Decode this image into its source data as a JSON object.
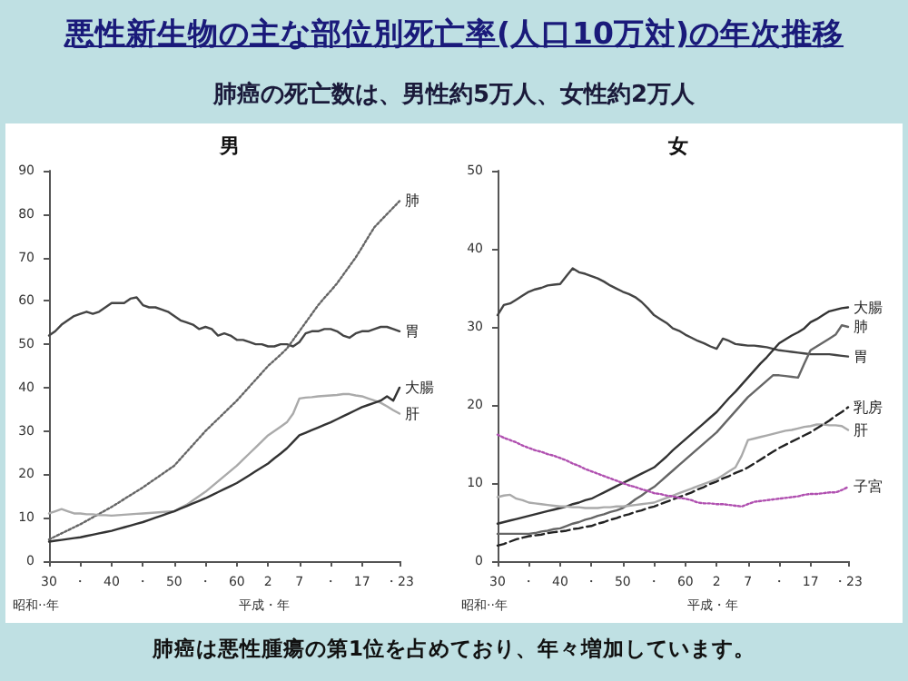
{
  "chart_data": [
    {
      "type": "line",
      "title": "男",
      "xlabel": "昭和··年",
      "annotations": [
        "平成・年",
        "悪性新生物の主な部位別死亡率(人口10万対)の年次推移",
        "肺癌の死亡数は、男性約5万人、女性約2万人"
      ],
      "categories": [
        "30",
        null,
        null,
        null,
        null,
        "・",
        null,
        null,
        null,
        null,
        "40",
        null,
        null,
        null,
        null,
        "・",
        null,
        null,
        null,
        null,
        "50",
        null,
        null,
        null,
        null,
        "・",
        null,
        null,
        null,
        null,
        "60",
        null,
        null,
        null,
        null,
        "2",
        null,
        null,
        null,
        null,
        "7",
        null,
        null,
        null,
        null,
        "・",
        null,
        null,
        null,
        null,
        "17",
        null,
        null,
        null,
        null,
        null,
        "・23"
      ],
      "ylim": [
        0,
        90
      ],
      "yticks": [
        0,
        10,
        20,
        30,
        40,
        50,
        60,
        70,
        80,
        90
      ],
      "grid": false,
      "legend": false,
      "marker": "none",
      "series": [
        {
          "name": "胃",
          "color": "#444444",
          "line_style": "solid",
          "values": [
            52,
            53,
            54.5,
            55.5,
            56.5,
            57,
            57.5,
            57,
            57.5,
            58.5,
            59.5,
            59.5,
            59.5,
            60.5,
            60.8,
            59,
            58.5,
            58.5,
            58,
            57.5,
            56.5,
            55.5,
            55,
            54.5,
            53.5,
            54,
            53.5,
            52,
            52.5,
            52,
            51,
            51,
            50.5,
            50,
            50,
            49.5,
            49.5,
            50,
            50,
            49.5,
            50.5,
            52.5,
            53,
            53,
            53.5,
            53.5,
            53,
            52,
            51.5,
            52.5,
            53,
            53,
            53.5,
            54,
            54,
            53.5,
            53
          ]
        },
        {
          "name": "肺",
          "color": "#666666",
          "line_style": "dotted",
          "values": [
            5,
            5.7,
            6.4,
            7.1,
            7.8,
            8.5,
            9.3,
            10.1,
            10.9,
            11.7,
            12.5,
            13.4,
            14.3,
            15.2,
            16.1,
            17,
            18,
            19,
            20,
            21,
            22,
            23.6,
            25.2,
            26.8,
            28.4,
            30,
            31.4,
            32.8,
            34.2,
            35.6,
            37,
            38.6,
            40.2,
            41.8,
            43.4,
            45,
            46.3,
            47.6,
            49,
            51,
            53,
            55,
            57,
            59,
            60.7,
            62.3,
            64,
            66,
            68,
            70,
            72.3,
            74.7,
            77,
            78.5,
            80,
            81.5,
            83
          ]
        },
        {
          "name": "肝",
          "color": "#aaaaaa",
          "line_style": "solid",
          "values": [
            11,
            11.5,
            12,
            11.5,
            11,
            11,
            10.8,
            10.8,
            10.6,
            10.6,
            10.5,
            10.6,
            10.7,
            10.8,
            10.9,
            11,
            11.1,
            11.2,
            11.3,
            11.4,
            11.5,
            12.3,
            13,
            14,
            15,
            16,
            17.2,
            18.4,
            19.6,
            20.8,
            22,
            23.4,
            24.8,
            26.2,
            27.6,
            29,
            30,
            31,
            32,
            34,
            37.5,
            37.7,
            37.8,
            38,
            38.1,
            38.2,
            38.3,
            38.5,
            38.5,
            38.2,
            38,
            37.5,
            37,
            36.5,
            35.7,
            34.8,
            34
          ]
        },
        {
          "name": "大腸",
          "color": "#333333",
          "line_style": "solid",
          "values": [
            4.5,
            4.7,
            4.9,
            5.1,
            5.3,
            5.5,
            5.8,
            6.1,
            6.4,
            6.7,
            7,
            7.4,
            7.8,
            8.2,
            8.6,
            9,
            9.5,
            10,
            10.5,
            11,
            11.5,
            12.1,
            12.7,
            13.3,
            13.9,
            14.5,
            15.2,
            15.9,
            16.6,
            17.3,
            18,
            18.9,
            19.8,
            20.7,
            21.6,
            22.5,
            23.7,
            24.8,
            26,
            27.5,
            29,
            29.6,
            30.2,
            30.8,
            31.4,
            32,
            32.7,
            33.4,
            34.1,
            34.8,
            35.5,
            36,
            36.5,
            37,
            38,
            37,
            40
          ]
        }
      ]
    },
    {
      "type": "line",
      "title": "女",
      "xlabel": "昭和··年",
      "annotations": [
        "平成・年",
        "肺癌は悪性腫瘍の第1位を占めており、年々増加しています。"
      ],
      "categories": [
        "30",
        null,
        null,
        null,
        null,
        "・",
        null,
        null,
        null,
        null,
        "40",
        null,
        null,
        null,
        null,
        "・",
        null,
        null,
        null,
        null,
        "50",
        null,
        null,
        null,
        null,
        "・",
        null,
        null,
        null,
        null,
        "60",
        null,
        null,
        null,
        null,
        "2",
        null,
        null,
        null,
        null,
        "7",
        null,
        null,
        null,
        null,
        "・",
        null,
        null,
        null,
        null,
        "17",
        null,
        null,
        null,
        null,
        null,
        "・23"
      ],
      "ylim": [
        0,
        50
      ],
      "yticks": [
        0,
        10,
        20,
        30,
        40,
        50
      ],
      "grid": false,
      "legend": false,
      "marker": "none",
      "series": [
        {
          "name": "胃",
          "color": "#444444",
          "line_style": "solid",
          "values": [
            31.5,
            32.8,
            33,
            33.5,
            34,
            34.5,
            34.8,
            35,
            35.3,
            35.4,
            35.5,
            36.5,
            37.5,
            37,
            36.8,
            36.5,
            36.2,
            35.8,
            35.3,
            34.9,
            34.5,
            34.2,
            33.8,
            33.2,
            32.4,
            31.5,
            31,
            30.5,
            29.8,
            29.5,
            29,
            28.6,
            28.2,
            27.9,
            27.5,
            27.2,
            28.5,
            28.2,
            27.8,
            27.7,
            27.6,
            27.6,
            27.5,
            27.4,
            27.2,
            27,
            26.9,
            26.8,
            26.7,
            26.6,
            26.5,
            26.5,
            26.5,
            26.5,
            26.4,
            26.3,
            26.2
          ]
        },
        {
          "name": "大腸",
          "color": "#333333",
          "line_style": "solid",
          "values": [
            4.8,
            5,
            5.2,
            5.4,
            5.6,
            5.8,
            6,
            6.2,
            6.4,
            6.6,
            6.8,
            7,
            7.3,
            7.5,
            7.8,
            8,
            8.4,
            8.8,
            9.2,
            9.6,
            10,
            10.4,
            10.8,
            11.2,
            11.6,
            12,
            12.7,
            13.4,
            14.2,
            14.9,
            15.6,
            16.3,
            17,
            17.7,
            18.4,
            19.1,
            20,
            20.9,
            21.7,
            22.6,
            23.5,
            24.4,
            25.3,
            26.1,
            27,
            27.9,
            28.4,
            28.9,
            29.3,
            29.8,
            30.6,
            31,
            31.5,
            32,
            32.2,
            32.4,
            32.5
          ]
        },
        {
          "name": "肺",
          "color": "#666666",
          "line_style": "solid",
          "values": [
            3.5,
            3.5,
            3.5,
            3.5,
            3.5,
            3.5,
            3.6,
            3.8,
            3.9,
            4.1,
            4.2,
            4.5,
            4.8,
            5,
            5.3,
            5.5,
            5.8,
            6,
            6.3,
            6.5,
            6.8,
            7.3,
            7.9,
            8.4,
            9,
            9.5,
            10.2,
            10.9,
            11.6,
            12.3,
            13,
            13.7,
            14.4,
            15.1,
            15.8,
            16.5,
            17.4,
            18.3,
            19.2,
            20.1,
            21,
            21.7,
            22.4,
            23.1,
            23.8,
            23.8,
            23.7,
            23.6,
            23.5,
            25.3,
            27,
            27.5,
            28,
            28.5,
            29,
            30.2,
            30
          ]
        },
        {
          "name": "肝",
          "color": "#aaaaaa",
          "line_style": "solid",
          "values": [
            8.2,
            8.4,
            8.5,
            8,
            7.8,
            7.5,
            7.4,
            7.3,
            7.2,
            7.1,
            7,
            7,
            6.9,
            6.9,
            6.8,
            6.8,
            6.8,
            6.9,
            6.9,
            7,
            7,
            7.1,
            7.2,
            7.3,
            7.4,
            7.5,
            7.8,
            8.1,
            8.4,
            8.7,
            9,
            9.3,
            9.6,
            9.9,
            10.2,
            10.5,
            11,
            11.5,
            12,
            13.5,
            15.5,
            15.7,
            15.9,
            16.1,
            16.3,
            16.5,
            16.7,
            16.8,
            17,
            17.2,
            17.3,
            17.5,
            17.5,
            17.4,
            17.4,
            17.3,
            16.8
          ]
        },
        {
          "name": "乳房",
          "color": "#222222",
          "line_style": "dashed",
          "values": [
            2,
            2.2,
            2.5,
            2.8,
            3,
            3.2,
            3.3,
            3.4,
            3.6,
            3.7,
            3.8,
            3.9,
            4.1,
            4.2,
            4.4,
            4.5,
            4.8,
            5,
            5.3,
            5.5,
            5.8,
            6,
            6.3,
            6.5,
            6.8,
            7,
            7.3,
            7.6,
            7.9,
            8.2,
            8.5,
            8.8,
            9.2,
            9.5,
            9.9,
            10.2,
            10.6,
            10.9,
            11.3,
            11.6,
            12,
            12.5,
            13,
            13.5,
            14,
            14.5,
            14.9,
            15.3,
            15.7,
            16.1,
            16.5,
            17,
            17.5,
            18,
            18.6,
            19.1,
            19.7
          ]
        },
        {
          "name": "子宮",
          "color": "#b050b0",
          "line_style": "dotted",
          "values": [
            16.2,
            15.8,
            15.5,
            15.2,
            14.8,
            14.5,
            14.2,
            14,
            13.7,
            13.5,
            13.2,
            12.9,
            12.5,
            12.2,
            11.8,
            11.5,
            11.2,
            10.9,
            10.6,
            10.3,
            10,
            9.7,
            9.5,
            9.2,
            9,
            8.7,
            8.6,
            8.4,
            8.3,
            8.1,
            8,
            7.8,
            7.5,
            7.4,
            7.4,
            7.3,
            7.3,
            7.2,
            7.1,
            7,
            7.3,
            7.6,
            7.7,
            7.8,
            7.9,
            8,
            8.1,
            8.2,
            8.3,
            8.5,
            8.6,
            8.6,
            8.7,
            8.8,
            8.8,
            9.1,
            9.5
          ]
        }
      ]
    }
  ]
}
